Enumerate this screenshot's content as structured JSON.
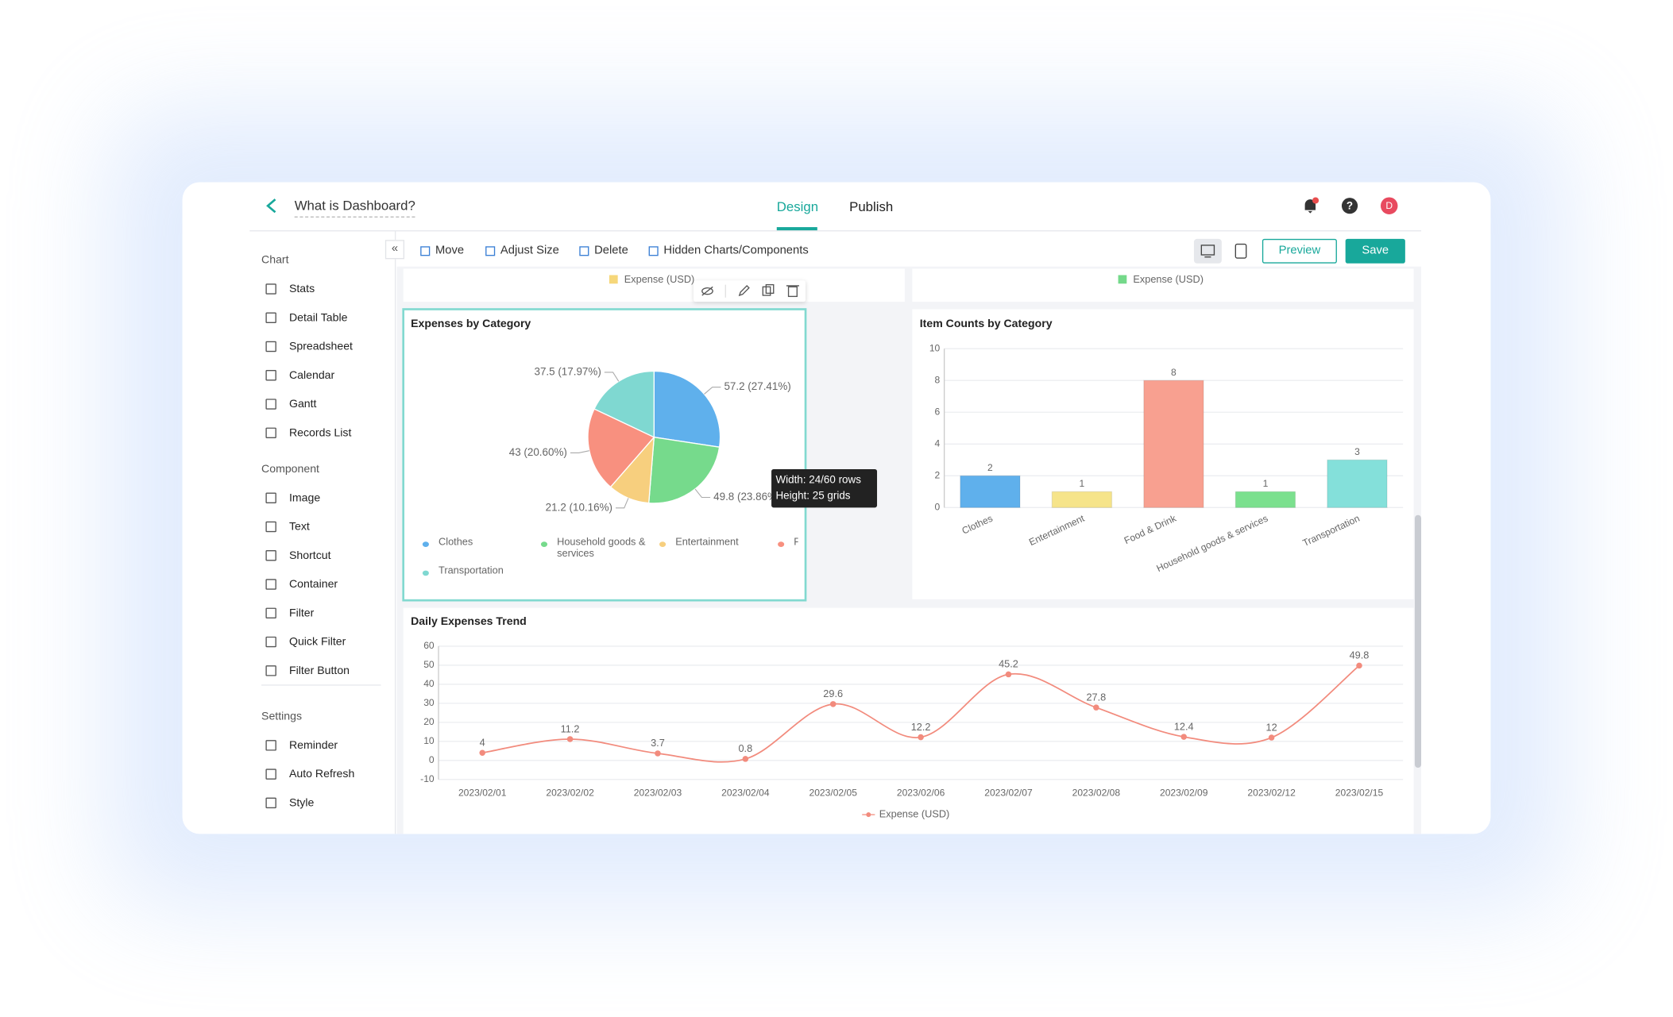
{
  "header": {
    "title": "What is Dashboard?",
    "tabs": [
      "Design",
      "Publish"
    ],
    "avatar": "D"
  },
  "toolbar": {
    "actions": [
      "Move",
      "Adjust Size",
      "Delete",
      "Hidden Charts/Components"
    ],
    "buttons": [
      "Preview",
      "Save"
    ]
  },
  "sidebar": [
    {
      "title": "Chart",
      "items": [
        "Stats",
        "Detail Table",
        "Spreadsheet",
        "Calendar",
        "Gantt",
        "Records List"
      ]
    },
    {
      "title": "Component",
      "items": [
        "Image",
        "Text",
        "Shortcut",
        "Container",
        "Filter",
        "Quick Filter",
        "Filter Button"
      ]
    },
    {
      "title": "Settings",
      "items": [
        "Reminder",
        "Auto Refresh",
        "Style"
      ]
    }
  ],
  "partial_widgets": [
    {
      "legend": "Expense (USD)",
      "color": "#f6d77a"
    },
    {
      "legend": "Expense (USD)",
      "color": "#74d98a"
    }
  ],
  "tooltip": [
    "Width: 24/60 rows",
    "Height: 25 grids"
  ],
  "chart_data": [
    {
      "type": "pie",
      "title": "Expenses by Category",
      "categories": [
        "Clothes",
        "Household goods & services",
        "Entertainment",
        "Food & Drink",
        "Transportation"
      ],
      "values": [
        57.2,
        49.8,
        21.2,
        43,
        37.5
      ],
      "value_labels": [
        "57.2 (27.41%)",
        "49.8 (23.86%)",
        "21.2 (10.16%)",
        "43 (20.60%)",
        "37.5 (17.97%)"
      ],
      "colors": [
        "#5fb0ec",
        "#76da8c",
        "#f7cf7e",
        "#f8907f",
        "#7fd8d1"
      ]
    },
    {
      "type": "bar",
      "title": "Item Counts by Category",
      "categories": [
        "Clothes",
        "Entertainment",
        "Food & Drink",
        "Household goods & services",
        "Transportation"
      ],
      "values": [
        2,
        1,
        8,
        1,
        3
      ],
      "colors": [
        "#5fb0ec",
        "#f6e48a",
        "#f8a090",
        "#7be08e",
        "#84e0da"
      ],
      "ylim": [
        0,
        10
      ],
      "yticks": [
        0,
        2,
        4,
        6,
        8,
        10
      ],
      "grid": true
    },
    {
      "type": "line",
      "title": "Daily Expenses Trend",
      "x": [
        "2023/02/01",
        "2023/02/02",
        "2023/02/03",
        "2023/02/04",
        "2023/02/05",
        "2023/02/06",
        "2023/02/07",
        "2023/02/08",
        "2023/02/09",
        "2023/02/12",
        "2023/02/15"
      ],
      "series": [
        {
          "name": "Expense (USD)",
          "color": "#f28b7d",
          "values": [
            4,
            11.2,
            3.7,
            0.8,
            29.6,
            12.2,
            45.2,
            27.8,
            12.4,
            12,
            49.8
          ]
        }
      ],
      "ylim": [
        -10,
        60
      ],
      "yticks": [
        -10,
        0,
        10,
        20,
        30,
        40,
        50,
        60
      ],
      "grid": true,
      "smooth": true
    }
  ]
}
